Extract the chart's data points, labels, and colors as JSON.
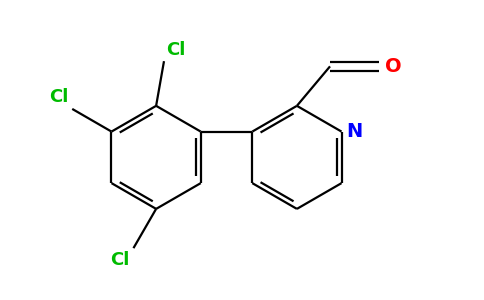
{
  "bg_color": "#ffffff",
  "bond_color": "#000000",
  "cl_color": "#00bb00",
  "n_color": "#0000ff",
  "o_color": "#ff0000",
  "bond_width": 1.6,
  "dbo": 0.1,
  "shrink": 0.13,
  "font_size_cl": 13,
  "font_size_atom": 14,
  "xlim": [
    0,
    9.5
  ],
  "ylim": [
    0,
    6.0
  ]
}
